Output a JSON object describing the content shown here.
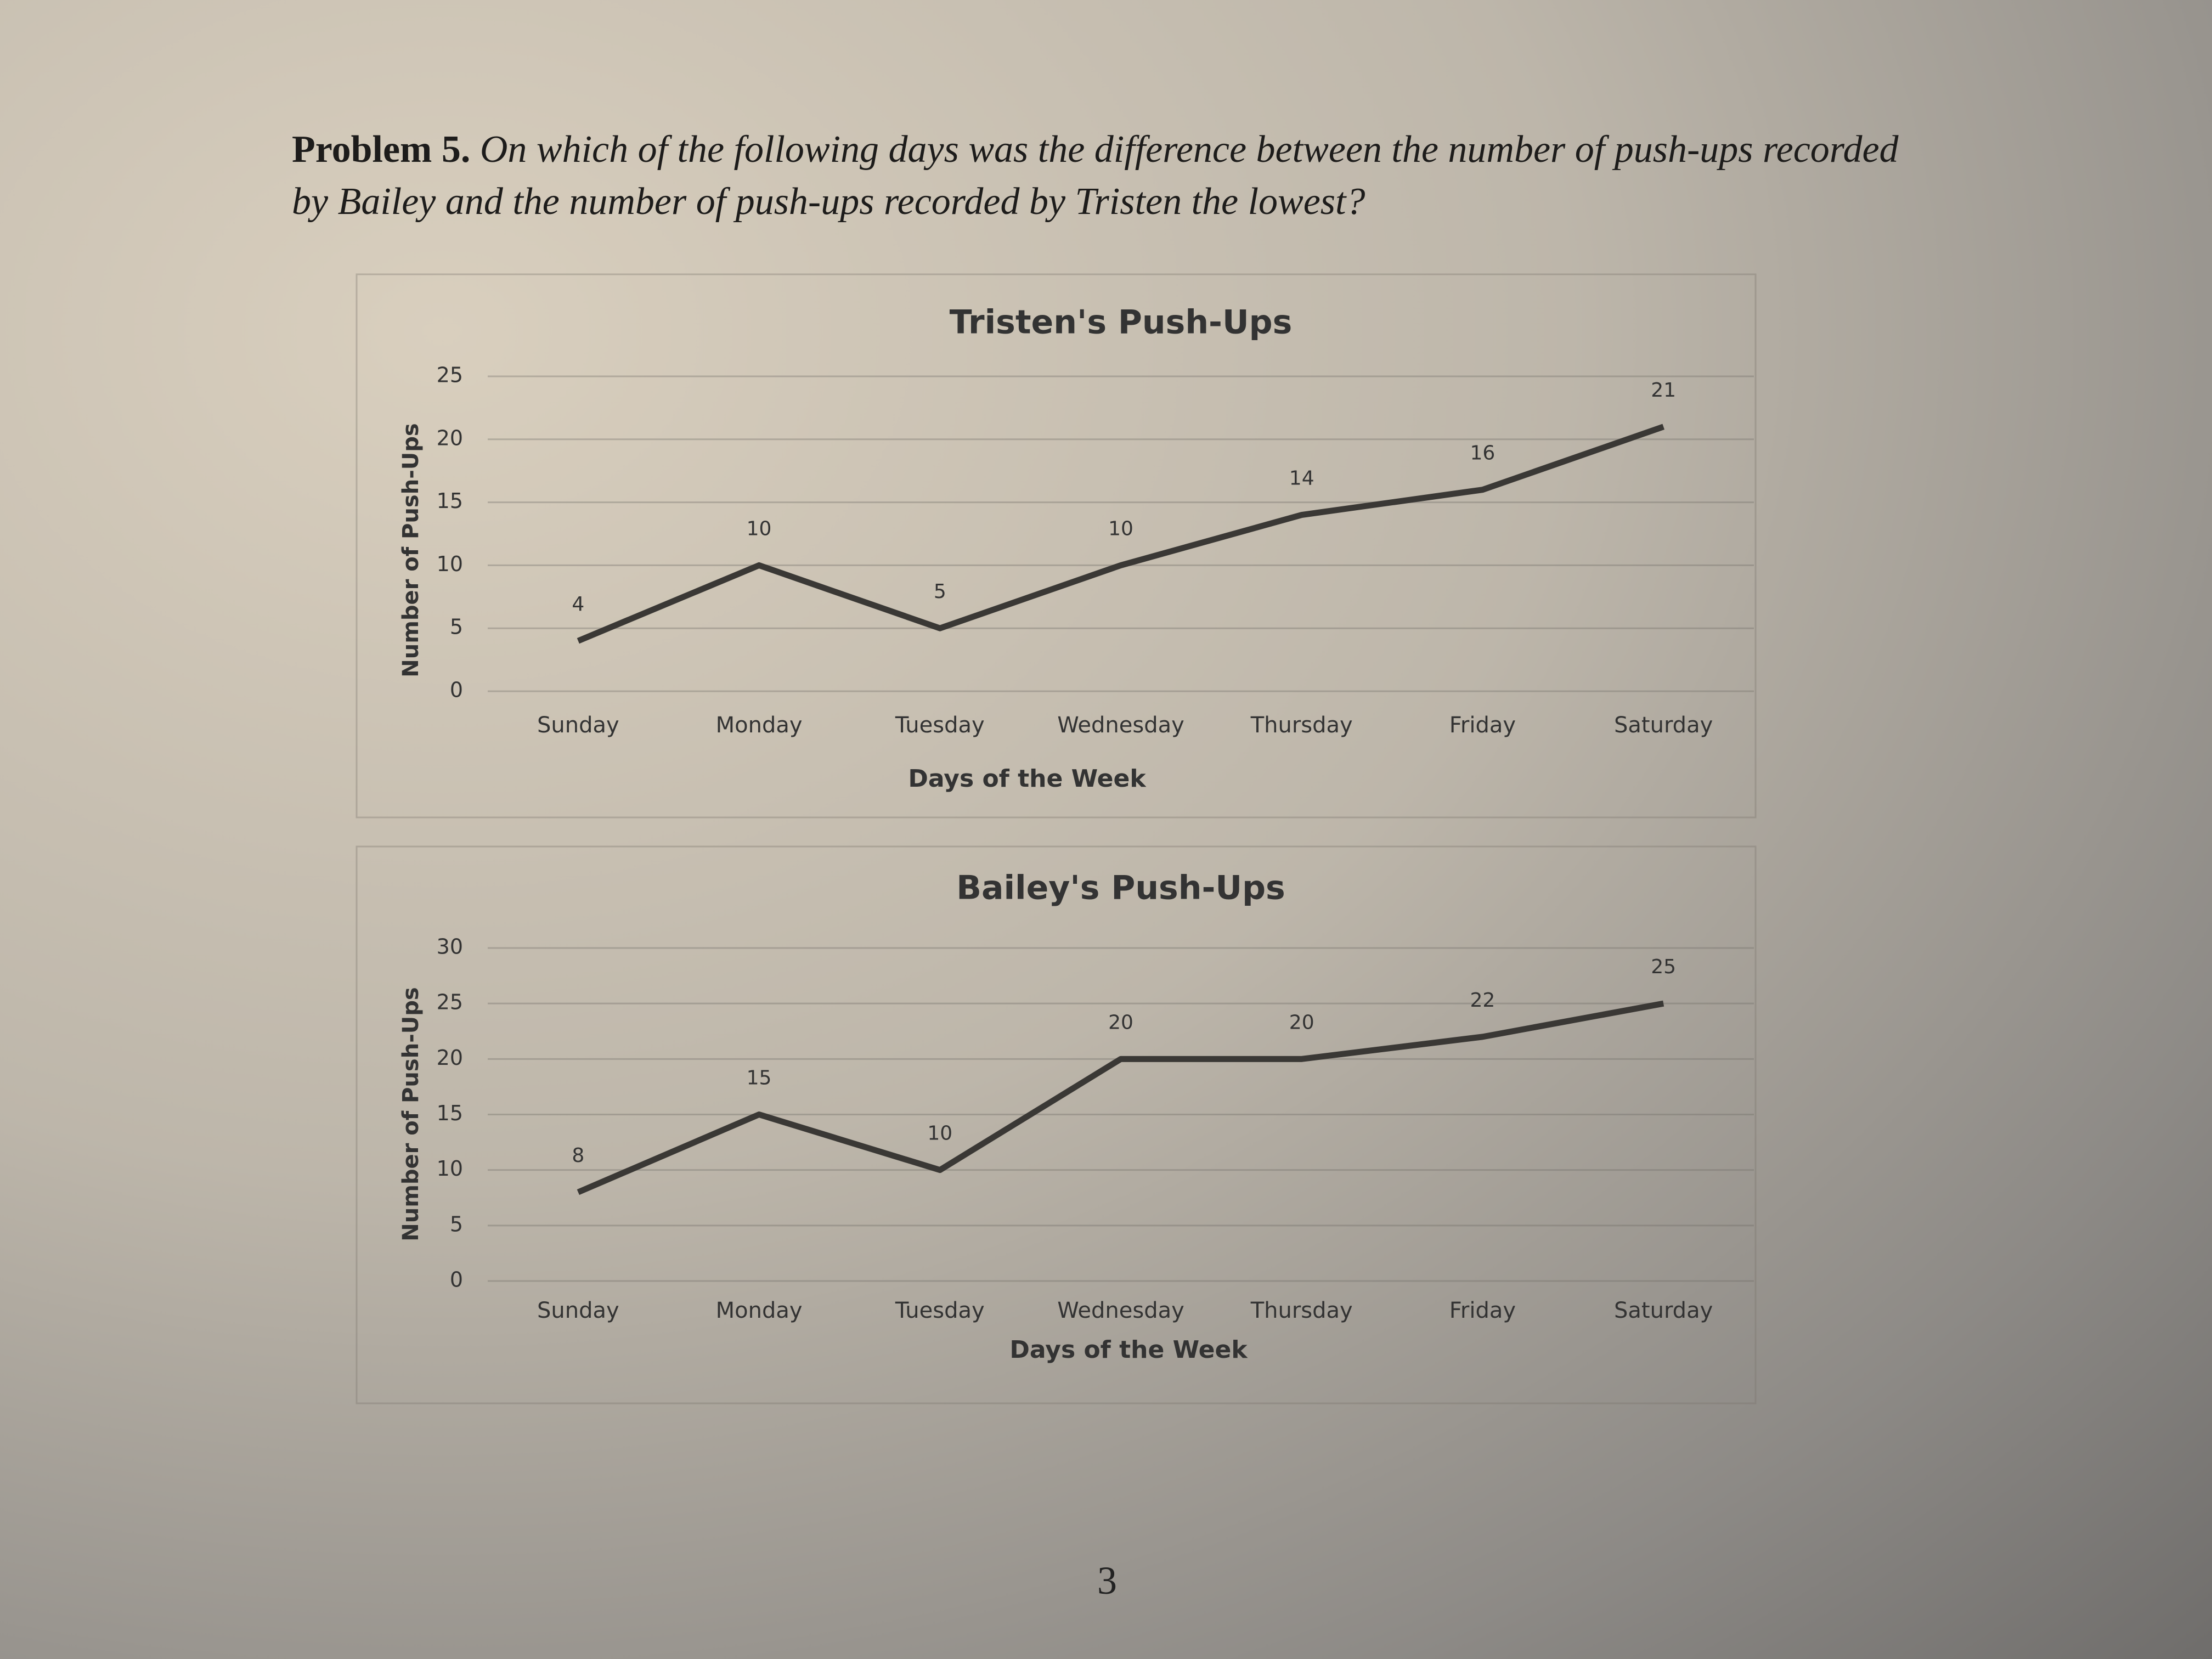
{
  "problem_label": "Problem 5.",
  "problem_text": "On which of the following days was the difference between the number of push-ups recorded by Bailey and the number of push-ups recorded by Tristen the lowest?",
  "chart_data": [
    {
      "type": "line",
      "title": "Tristen's Push-Ups",
      "x_label": "Days of the Week",
      "y_label": "Number of Push-Ups",
      "categories": [
        "Sunday",
        "Monday",
        "Tuesday",
        "Wednesday",
        "Thursday",
        "Friday",
        "Saturday"
      ],
      "values": [
        4,
        10,
        5,
        10,
        14,
        16,
        21
      ],
      "color": "#3a3835",
      "ylim": [
        0,
        25
      ],
      "yticks": [
        0,
        5,
        10,
        15,
        20,
        25
      ],
      "grid": true
    },
    {
      "type": "line",
      "title": "Bailey's Push-Ups",
      "x_label": "Days of the Week",
      "y_label": "Number of Push-Ups",
      "categories": [
        "Sunday",
        "Monday",
        "Tuesday",
        "Wednesday",
        "Thursday",
        "Friday",
        "Saturday"
      ],
      "values": [
        8,
        15,
        10,
        20,
        20,
        22,
        25
      ],
      "color": "#3a3835",
      "ylim": [
        0,
        30
      ],
      "yticks": [
        0,
        5,
        10,
        15,
        20,
        25,
        30
      ],
      "grid": true
    }
  ],
  "page_number": "3"
}
